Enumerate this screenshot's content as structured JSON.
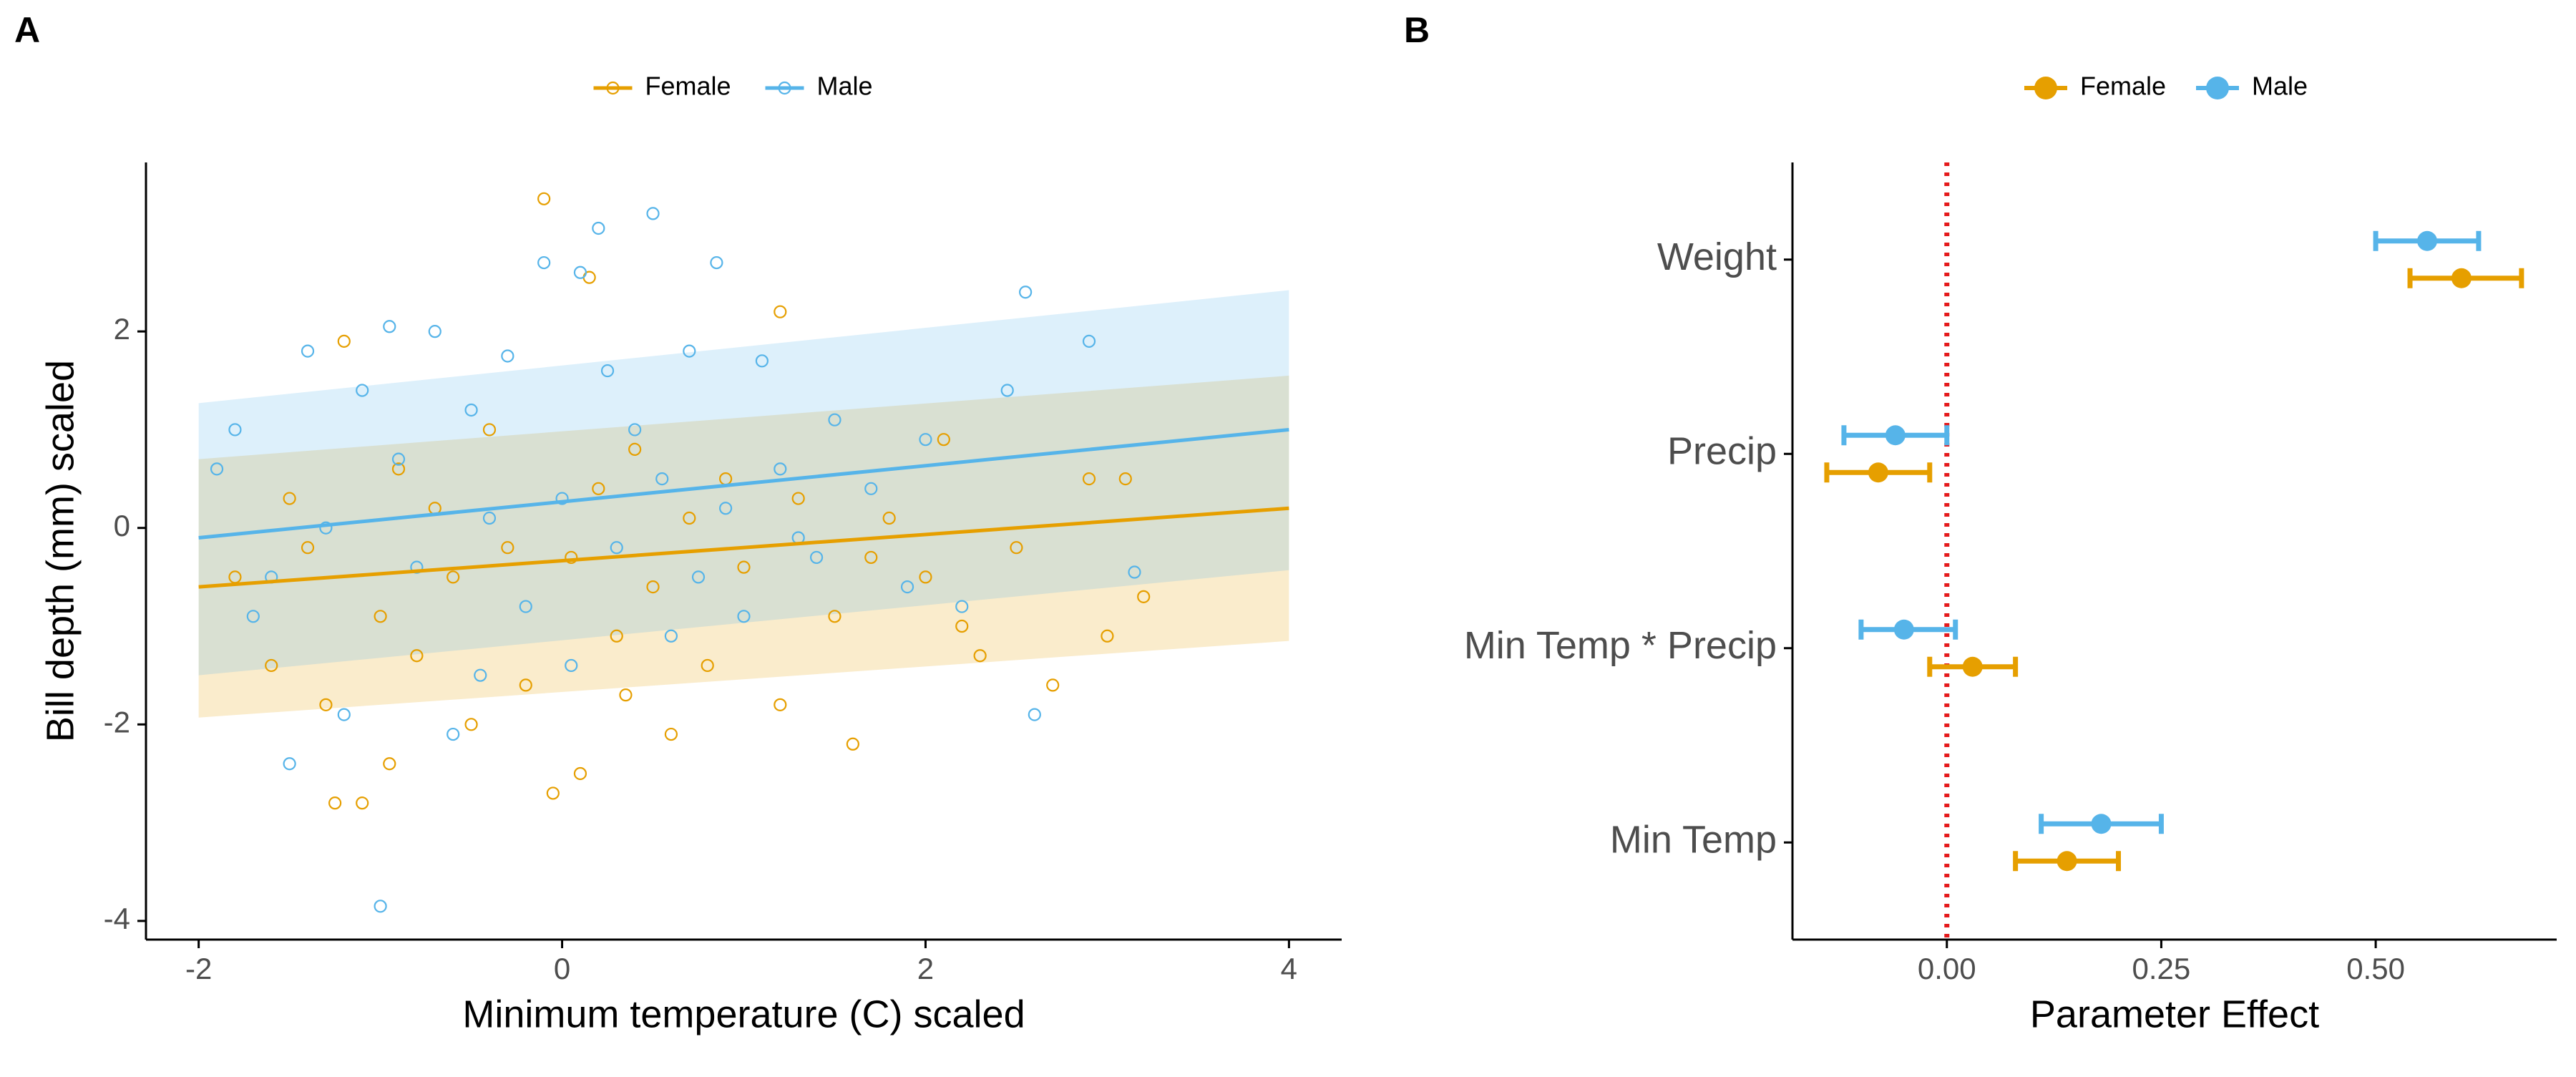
{
  "chart_data": [
    {
      "type": "scatter",
      "panel_label": "A",
      "xlabel": "Minimum temperature (C) scaled",
      "ylabel": "Bill depth (mm) scaled",
      "xlim": [
        -2.29,
        4.29
      ],
      "ylim": [
        -4.19,
        3.72
      ],
      "xticks": [
        -2,
        0,
        2,
        4
      ],
      "yticks": [
        -4,
        -2,
        0,
        2
      ],
      "grid": false,
      "series": [
        {
          "name": "Female",
          "color": "#E69F00",
          "x": [
            -1.8,
            -1.6,
            -1.5,
            -1.3,
            -1.25,
            -1.1,
            -1.2,
            -1.0,
            -0.9,
            -0.8,
            -0.7,
            -0.6,
            -0.5,
            -0.4,
            -0.3,
            -0.2,
            -0.1,
            -0.05,
            0.05,
            0.1,
            0.15,
            0.2,
            0.3,
            0.4,
            0.5,
            0.6,
            0.7,
            0.8,
            0.9,
            1.0,
            1.2,
            1.2,
            1.3,
            1.5,
            1.6,
            1.8,
            2.0,
            2.1,
            2.3,
            2.5,
            2.7,
            2.9,
            3.0,
            3.1,
            3.2,
            -1.4,
            -0.95,
            0.35,
            1.7,
            2.2
          ],
          "y": [
            -0.5,
            -1.4,
            0.3,
            -1.8,
            -2.8,
            -2.8,
            1.9,
            -0.9,
            0.6,
            -1.3,
            0.2,
            -0.5,
            -2.0,
            1.0,
            -0.2,
            -1.6,
            3.35,
            -2.7,
            -0.3,
            -2.5,
            2.55,
            0.4,
            -1.1,
            0.8,
            -0.6,
            -2.1,
            0.1,
            -1.4,
            0.5,
            -0.4,
            -1.8,
            2.2,
            0.3,
            -0.9,
            -2.2,
            0.1,
            -0.5,
            0.9,
            -1.3,
            -0.2,
            -1.6,
            0.5,
            -1.1,
            0.5,
            -0.7,
            -0.2,
            -2.4,
            -1.7,
            -0.3,
            -1.0
          ],
          "fit": {
            "x": [
              -2,
              4
            ],
            "line": [
              -0.6,
              0.2
            ],
            "upper": [
              0.7,
              1.55
            ],
            "lower": [
              -1.93,
              -1.15
            ]
          }
        },
        {
          "name": "Male",
          "color": "#56B4E9",
          "x": [
            -1.9,
            -1.8,
            -1.6,
            -1.5,
            -1.4,
            -1.3,
            -1.2,
            -1.1,
            -1.0,
            -0.95,
            -0.9,
            -0.8,
            -0.7,
            -0.6,
            -0.5,
            -0.4,
            -0.3,
            -0.2,
            -0.1,
            0.0,
            0.05,
            0.1,
            0.2,
            0.25,
            0.3,
            0.4,
            0.5,
            0.55,
            0.6,
            0.7,
            0.85,
            0.9,
            1.0,
            1.1,
            1.2,
            1.4,
            1.5,
            1.7,
            1.9,
            2.0,
            2.2,
            2.45,
            2.55,
            2.6,
            2.9,
            3.15,
            -1.7,
            0.75,
            1.3,
            -0.45
          ],
          "y": [
            0.6,
            1.0,
            -0.5,
            -2.4,
            1.8,
            0.0,
            -1.9,
            1.4,
            -3.85,
            2.05,
            0.7,
            -0.4,
            2.0,
            -2.1,
            1.2,
            0.1,
            1.75,
            -0.8,
            2.7,
            0.3,
            -1.4,
            2.6,
            3.05,
            1.6,
            -0.2,
            1.0,
            3.2,
            0.5,
            -1.1,
            1.8,
            2.7,
            0.2,
            -0.9,
            1.7,
            0.6,
            -0.3,
            1.1,
            0.4,
            -0.6,
            0.9,
            -0.8,
            1.4,
            2.4,
            -1.9,
            1.9,
            -0.45,
            -0.9,
            -0.5,
            -0.1,
            -1.5
          ],
          "fit": {
            "x": [
              -2,
              4
            ],
            "line": [
              -0.1,
              1.0
            ],
            "upper": [
              1.27,
              2.42
            ],
            "lower": [
              -1.5,
              -0.43
            ]
          }
        }
      ]
    },
    {
      "type": "errorbar",
      "panel_label": "B",
      "xlabel": "Parameter Effect",
      "categories": [
        "Min Temp",
        "Min Temp * Precip",
        "Precip",
        "Weight"
      ],
      "xlim": [
        -0.18,
        0.711
      ],
      "xticks": [
        {
          "value": 0,
          "label": "0.00"
        },
        {
          "value": 0.25,
          "label": "0.25"
        },
        {
          "value": 0.5,
          "label": "0.50"
        }
      ],
      "reference_line": 0,
      "reference_color": "#E41A1C",
      "series": [
        {
          "name": "Female",
          "color": "#E69F00",
          "values": [
            0.14,
            0.03,
            -0.08,
            0.6
          ],
          "lower": [
            0.08,
            -0.02,
            -0.14,
            0.54
          ],
          "upper": [
            0.2,
            0.08,
            -0.02,
            0.67
          ]
        },
        {
          "name": "Male",
          "color": "#56B4E9",
          "values": [
            0.18,
            -0.05,
            -0.06,
            0.56
          ],
          "lower": [
            0.11,
            -0.1,
            -0.12,
            0.5
          ],
          "upper": [
            0.25,
            0.01,
            0.0,
            0.62
          ]
        }
      ]
    }
  ]
}
